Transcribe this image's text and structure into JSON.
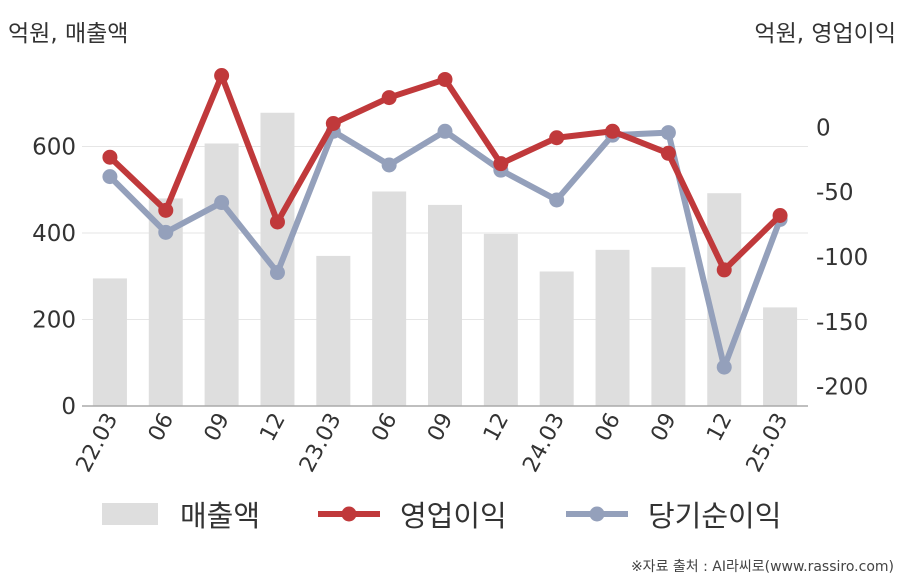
{
  "header": {
    "left_unit": "억원, 매출액",
    "right_unit": "억원, 영업이익"
  },
  "legend": {
    "revenue": "매출액",
    "operating_income": "영업이익",
    "net_income": "당기순이익"
  },
  "source": "※자료 출처 : AI라씨로(www.rassiro.com)",
  "colors": {
    "revenue": "#dedede",
    "operating_income": "#c0393b",
    "net_income": "#94a0bb",
    "axis": "#aaaaaa",
    "grid": "#e6e6e6"
  },
  "chart_data": {
    "type": "bar+line",
    "categories": [
      "22.03",
      "06",
      "09",
      "12",
      "23.03",
      "06",
      "09",
      "12",
      "24.03",
      "06",
      "09",
      "12",
      "25.03"
    ],
    "y_left": {
      "label": "억원, 매출액",
      "ylim": [
        0,
        800
      ],
      "ticks": [
        0,
        200,
        400,
        600
      ]
    },
    "y_right": {
      "label": "억원, 영업이익",
      "ylim": [
        -215,
        52
      ],
      "ticks": [
        0,
        -50,
        -100,
        -150,
        -200
      ]
    },
    "grid": true,
    "legend_position": "bottom",
    "series": [
      {
        "name": "매출액",
        "type": "bar",
        "axis": "left",
        "values": [
          295,
          480,
          607,
          678,
          347,
          496,
          465,
          398,
          311,
          361,
          321,
          492,
          228
        ]
      },
      {
        "name": "영업이익",
        "type": "line",
        "axis": "right",
        "values": [
          -23,
          -64,
          40,
          -73,
          3,
          23,
          37,
          -28,
          -8,
          -3,
          -20,
          -110,
          -68
        ]
      },
      {
        "name": "당기순이익",
        "type": "line",
        "axis": "right",
        "values": [
          -38,
          -81,
          -58,
          -112,
          -3,
          -29,
          -3,
          -33,
          -56,
          -6,
          -4,
          -185,
          -71
        ]
      }
    ]
  }
}
